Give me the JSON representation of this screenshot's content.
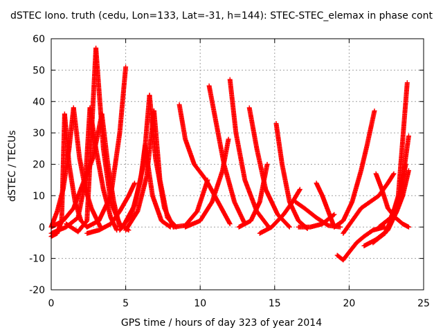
{
  "chart_data": {
    "type": "scatter",
    "title": "dSTEC Iono. truth (cedu, Lon=133, Lat=-31, h=144): STEC-STEC_elemax in phase cont",
    "xlabel": "GPS time / hours of day 323 of year 2014",
    "ylabel": "dSTEC  / TECUs",
    "xlim": [
      0,
      25
    ],
    "ylim": [
      -20,
      60
    ],
    "xticks": [
      "0",
      "5",
      "10",
      "15",
      "20",
      "25"
    ],
    "yticks": [
      "-20",
      "-10",
      "0",
      "10",
      "20",
      "30",
      "40",
      "50",
      "60"
    ],
    "grid": true,
    "marker": "+",
    "color": "#ff0000",
    "series": [
      {
        "x": [
          0.0,
          0.4,
          0.7,
          0.9
        ],
        "y": [
          -3.0,
          -2.0,
          2.0,
          36.0
        ]
      },
      {
        "x": [
          0.9,
          1.2,
          1.6,
          2.0,
          2.4
        ],
        "y": [
          36.0,
          20.0,
          8.0,
          2.0,
          0.0
        ]
      },
      {
        "x": [
          0.0,
          0.4,
          0.8,
          1.2,
          1.5
        ],
        "y": [
          0.0,
          5.0,
          12.0,
          25.0,
          38.0
        ]
      },
      {
        "x": [
          1.5,
          1.9,
          2.3,
          2.7,
          3.3
        ],
        "y": [
          38.0,
          22.0,
          12.0,
          6.0,
          0.0
        ]
      },
      {
        "x": [
          0.0,
          1.0,
          1.8,
          2.3,
          2.6
        ],
        "y": [
          -2.0,
          0.0,
          3.0,
          15.0,
          38.0
        ]
      },
      {
        "x": [
          2.6,
          3.0,
          3.5,
          4.0,
          4.4
        ],
        "y": [
          38.0,
          25.0,
          12.0,
          3.0,
          -1.0
        ]
      },
      {
        "x": [
          1.0,
          1.8,
          2.4,
          3.0
        ],
        "y": [
          1.0,
          -1.5,
          2.0,
          57.0
        ]
      },
      {
        "x": [
          3.0,
          3.5,
          4.0,
          4.6,
          5.2
        ],
        "y": [
          57.0,
          25.0,
          8.0,
          1.0,
          -1.0
        ]
      },
      {
        "x": [
          2.4,
          3.2,
          4.0,
          4.6,
          5.0
        ],
        "y": [
          0.0,
          2.0,
          10.0,
          30.0,
          51.0
        ]
      },
      {
        "x": [
          0.0,
          0.8,
          1.5,
          2.3,
          2.8,
          3.4
        ],
        "y": [
          0.0,
          2.0,
          6.0,
          16.0,
          22.0,
          36.0
        ]
      },
      {
        "x": [
          3.4,
          3.8,
          4.2,
          4.6
        ],
        "y": [
          36.0,
          20.0,
          8.0,
          0.0
        ]
      },
      {
        "x": [
          2.4,
          3.2,
          4.0,
          4.6,
          5.2,
          5.6
        ],
        "y": [
          -2.0,
          -1.0,
          1.0,
          5.0,
          10.0,
          14.0
        ]
      },
      {
        "x": [
          4.6,
          5.4,
          6.0,
          6.3
        ],
        "y": [
          -1.0,
          4.0,
          15.0,
          26.0
        ]
      },
      {
        "x": [
          6.3,
          6.8,
          7.4,
          8.0
        ],
        "y": [
          26.0,
          10.0,
          2.0,
          0.0
        ]
      },
      {
        "x": [
          4.8,
          5.6,
          6.2,
          6.6
        ],
        "y": [
          0.0,
          7.0,
          20.0,
          42.0
        ]
      },
      {
        "x": [
          6.6,
          7.0,
          7.6,
          8.2
        ],
        "y": [
          42.0,
          22.0,
          6.0,
          0.0
        ]
      },
      {
        "x": [
          5.0,
          5.8,
          6.4,
          6.9
        ],
        "y": [
          -1.0,
          5.0,
          16.0,
          37.0
        ]
      },
      {
        "x": [
          6.9,
          7.3,
          7.8,
          8.4
        ],
        "y": [
          37.0,
          15.0,
          3.0,
          0.0
        ]
      },
      {
        "x": [
          8.6,
          9.0,
          9.6,
          10.4,
          11.2,
          12.0
        ],
        "y": [
          39.0,
          28.0,
          20.0,
          15.0,
          8.0,
          1.0
        ]
      },
      {
        "x": [
          8.2,
          9.0,
          9.8,
          10.5
        ],
        "y": [
          0.0,
          0.5,
          5.0,
          15.0
        ]
      },
      {
        "x": [
          9.0,
          10.0,
          10.8,
          11.5,
          11.9
        ],
        "y": [
          0.0,
          2.0,
          8.0,
          18.0,
          28.0
        ]
      },
      {
        "x": [
          10.6,
          11.0,
          11.6,
          12.3,
          13.0
        ],
        "y": [
          45.0,
          35.0,
          20.0,
          8.0,
          1.0
        ]
      },
      {
        "x": [
          12.0,
          12.4,
          13.0,
          13.8,
          14.6
        ],
        "y": [
          47.0,
          30.0,
          15.0,
          5.0,
          0.0
        ]
      },
      {
        "x": [
          13.3,
          13.8,
          14.4,
          15.2,
          16.0
        ],
        "y": [
          38.0,
          25.0,
          12.0,
          4.0,
          0.0
        ]
      },
      {
        "x": [
          12.6,
          13.4,
          14.0,
          14.5
        ],
        "y": [
          0.0,
          2.0,
          8.0,
          20.0
        ]
      },
      {
        "x": [
          15.1,
          15.5,
          16.0,
          16.6,
          17.2
        ],
        "y": [
          33.0,
          20.0,
          8.0,
          2.0,
          -0.5
        ]
      },
      {
        "x": [
          14.0,
          14.8,
          15.6,
          16.2,
          16.7
        ],
        "y": [
          -2.0,
          0.0,
          4.0,
          8.0,
          12.0
        ]
      },
      {
        "x": [
          16.4,
          17.0,
          17.8,
          18.6,
          19.4
        ],
        "y": [
          8.0,
          6.0,
          3.0,
          0.5,
          0.0
        ]
      },
      {
        "x": [
          17.8,
          18.2,
          18.6,
          19.0
        ],
        "y": [
          14.0,
          10.0,
          5.0,
          0.0
        ]
      },
      {
        "x": [
          16.6,
          17.4,
          18.2,
          19.0
        ],
        "y": [
          0.0,
          0.0,
          1.0,
          4.0
        ]
      },
      {
        "x": [
          19.0,
          19.6,
          20.2,
          20.8,
          21.2,
          21.7
        ],
        "y": [
          0.0,
          2.0,
          8.0,
          18.0,
          26.0,
          37.0
        ]
      },
      {
        "x": [
          19.2,
          19.6,
          20.0,
          20.5,
          21.0,
          21.6,
          22.4
        ],
        "y": [
          -9.0,
          -10.5,
          -8.0,
          -5.0,
          -3.0,
          -1.0,
          0.0
        ]
      },
      {
        "x": [
          19.6,
          20.2,
          20.8,
          21.4,
          22.0,
          22.6,
          23.0
        ],
        "y": [
          -2.0,
          2.0,
          6.0,
          8.0,
          10.0,
          14.0,
          17.0
        ]
      },
      {
        "x": [
          21.8,
          22.2,
          22.6,
          23.1,
          23.6,
          24.0
        ],
        "y": [
          17.0,
          12.0,
          6.0,
          3.0,
          1.0,
          0.0
        ]
      },
      {
        "x": [
          21.0,
          21.8,
          22.4,
          22.8,
          23.3,
          23.9
        ],
        "y": [
          -6.0,
          -4.0,
          -2.0,
          2.0,
          10.0,
          46.0
        ]
      },
      {
        "x": [
          21.6,
          22.4,
          23.0,
          23.5,
          24.0
        ],
        "y": [
          -5.0,
          -2.0,
          4.0,
          12.0,
          29.0
        ]
      },
      {
        "x": [
          21.8,
          22.6,
          23.2,
          23.6,
          24.0
        ],
        "y": [
          -4.0,
          -1.0,
          5.0,
          10.0,
          18.0
        ]
      },
      {
        "x": [
          22.0,
          22.8,
          23.4,
          23.8
        ],
        "y": [
          0.0,
          3.0,
          10.0,
          20.0
        ]
      }
    ]
  }
}
